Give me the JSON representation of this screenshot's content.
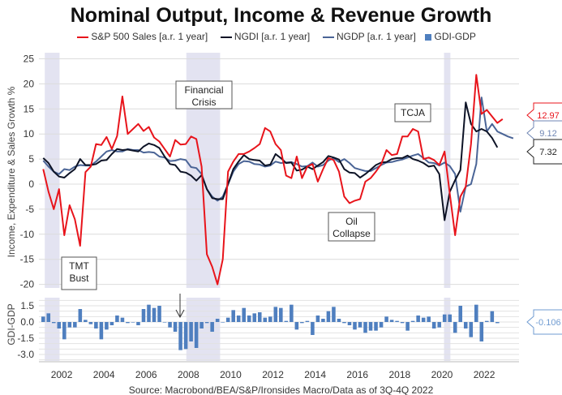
{
  "chart_data": [
    {
      "type": "line",
      "title": "Nominal Output, Income & Revenue Growth",
      "ylabel": "Income, Expenditure & Sales Growth %",
      "ylim": [
        -20,
        25
      ],
      "yticks": [
        "25",
        "20",
        "15",
        "10",
        "5",
        "0",
        "-5",
        "-10",
        "-15",
        "-20"
      ],
      "xticks": [
        "2002",
        "2004",
        "2006",
        "2008",
        "2010",
        "2012",
        "2014",
        "2016",
        "2018",
        "2020",
        "2022"
      ],
      "x_start": 2001.125,
      "x_step": 0.25,
      "grid": true,
      "legend_position": "top",
      "recessions": [
        [
          2001.2,
          2001.9
        ],
        [
          2007.9,
          2009.5
        ],
        [
          2020.1,
          2020.4
        ]
      ],
      "series": [
        {
          "name": "S&P 500 Sales [a.r. 1 year]",
          "color": "#e8141b",
          "last_label": "12.97",
          "values": [
            3,
            -1.5,
            -5,
            -1,
            -10.2,
            -4.2,
            -7,
            -12.3,
            2.4,
            3.5,
            8,
            7.8,
            9.4,
            7,
            9.6,
            17.5,
            10,
            11,
            12,
            10.6,
            11.4,
            9.3,
            8.5,
            7,
            5.5,
            8.8,
            7.9,
            8,
            9.5,
            9,
            3.5,
            -14,
            -16.5,
            -20,
            -15,
            2.5,
            4.5,
            6,
            6,
            6.5,
            7.2,
            8,
            11.2,
            10.5,
            8,
            6.8,
            1.7,
            1.2,
            5.5,
            1.2,
            3.5,
            4,
            0.5,
            3,
            5.2,
            4.8,
            2.5,
            -2.5,
            -3.8,
            -3.3,
            -3,
            0.5,
            1.2,
            2.5,
            4,
            6.8,
            5.8,
            6,
            9.5,
            9.5,
            11,
            10.5,
            5,
            5.3,
            4.8,
            3.8,
            6.5,
            -2,
            -10.2,
            -2.5,
            -0.5,
            8,
            21.8,
            14,
            14.8,
            13.5,
            12.2,
            12.97
          ]
        },
        {
          "name": "NGDI [a.r. 1 year]",
          "color": "#0d1326",
          "last_label": "7.32",
          "values": [
            5.2,
            4.2,
            2.5,
            1.5,
            1.3,
            2.2,
            3,
            5,
            3.8,
            3.8,
            4,
            4.7,
            4.8,
            6,
            7,
            6.8,
            6.9,
            6.7,
            6.5,
            7.5,
            8.1,
            7.8,
            7.2,
            5.5,
            4,
            3.8,
            2.5,
            2.3,
            1.7,
            0.7,
            1.8,
            -1,
            -2.8,
            -3,
            -3,
            0,
            3,
            4.5,
            5.8,
            5,
            4.8,
            4.7,
            3.7,
            3.9,
            6,
            5.2,
            4.2,
            4.3,
            2.7,
            2.9,
            3.5,
            3,
            3.7,
            4.4,
            5.6,
            5.3,
            4.9,
            3,
            2.3,
            2.2,
            1.3,
            2,
            2.9,
            3.8,
            4.3,
            4.4,
            5,
            5.2,
            5.2,
            5.7,
            5,
            4.7,
            4.2,
            3.5,
            3.7,
            2,
            -7.2,
            -1.5,
            0.8,
            2.8,
            16.3,
            12,
            10.5,
            11,
            10.5,
            9.2,
            7.32
          ]
        },
        {
          "name": "NGDP [a.r. 1 year]",
          "color": "#4a6496",
          "last_label": "9.12",
          "values": [
            4.7,
            3.5,
            2.5,
            2,
            3,
            2.8,
            3.5,
            3.8,
            3.7,
            3.7,
            4.5,
            5.5,
            6.5,
            6.8,
            6.5,
            6.5,
            7,
            6.8,
            6.8,
            6.3,
            6.4,
            6.3,
            5.5,
            5.3,
            4.6,
            4.7,
            5,
            4.8,
            3.4,
            3.2,
            2,
            -1,
            -2.5,
            -3.3,
            -2.5,
            0,
            2.5,
            4,
            4.6,
            4.5,
            4,
            3.9,
            3.5,
            3.7,
            4.5,
            4.2,
            4.3,
            4.4,
            4,
            3.5,
            3.6,
            4.3,
            3.5,
            3.8,
            4.7,
            5.2,
            4.4,
            5,
            4.2,
            3.2,
            2.9,
            2.6,
            2.6,
            3.2,
            3.8,
            4.3,
            4.4,
            4.7,
            4.9,
            5.3,
            5.7,
            6,
            5.2,
            4.3,
            4.2,
            3.7,
            4.3,
            3.6,
            2,
            -5.5,
            -0.5,
            0,
            4,
            17.3,
            10.5,
            12,
            10.5,
            10,
            9.5,
            9.12
          ]
        }
      ],
      "annotations": [
        {
          "lines": [
            "Financial",
            "Crisis"
          ]
        },
        {
          "lines": [
            "TCJA"
          ]
        },
        {
          "lines": [
            "Oil",
            "Collapse"
          ]
        },
        {
          "lines": [
            "TMT",
            "Bust"
          ]
        }
      ]
    },
    {
      "type": "bar",
      "name": "GDI-GDP",
      "ylabel": "GDI-GDP",
      "color": "#4f7fbf",
      "ylim": [
        -3.5,
        2.0
      ],
      "yticks": [
        "1.5",
        "0.0",
        "-1.5",
        "-3.0"
      ],
      "x_start": 2001.125,
      "x_step": 0.25,
      "last_label": "-0.106",
      "values": [
        0.5,
        0.8,
        -0.1,
        -0.6,
        -1.6,
        -0.5,
        -0.5,
        1.2,
        0.2,
        -0.2,
        -0.6,
        -1.6,
        -0.7,
        -0.3,
        0.6,
        0.4,
        -0.1,
        0,
        -0.3,
        1.2,
        1.6,
        1.3,
        1.5,
        0,
        -0.5,
        -0.9,
        -2.6,
        -2.5,
        -1.8,
        -2.4,
        -0.6,
        -0.1,
        -0.9,
        0.3,
        0,
        0.4,
        1.1,
        0.6,
        1.3,
        0.6,
        0.8,
        0.9,
        0.4,
        0.5,
        1.4,
        1.3,
        0.1,
        1.6,
        -0.7,
        -0.1,
        0.1,
        -1.2,
        0.6,
        0.3,
        1,
        1.4,
        0.3,
        -0.1,
        -0.3,
        -0.7,
        -0.5,
        -1,
        -0.8,
        -0.8,
        -0.5,
        0.5,
        0.2,
        0.1,
        -0.1,
        -0.8,
        0.1,
        0.6,
        0.4,
        0.5,
        -0.6,
        -0.5,
        0.7,
        0.7,
        -1,
        1.5,
        -0.6,
        -1.4,
        1.6,
        -1.8,
        0.1,
        1,
        -0.106
      ]
    }
  ],
  "legend": {
    "sales": "S&P 500 Sales [a.r. 1 year]",
    "ngdi": "NGDI [a.r. 1 year]",
    "ngdp": "NGDP [a.r. 1 year]",
    "gdi_gdp": "GDI-GDP"
  },
  "source": "Source: Macrobond/BEA/S&P/Ironsides Macro/Data as of 3Q-4Q 2022"
}
